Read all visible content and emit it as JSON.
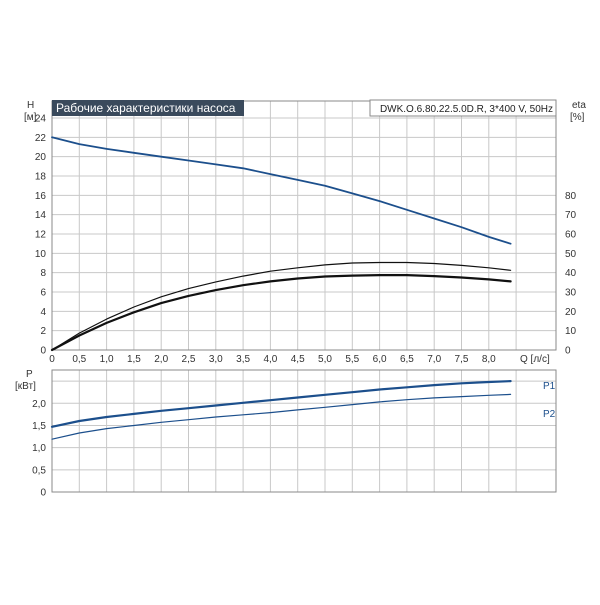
{
  "chart_data": [
    {
      "type": "line",
      "title": "Рабочие характеристики насоса",
      "subtitle": "DWK.O.6.80.22.5.0D.R, 3*400 V, 50Hz",
      "xlabel": "Q [л/с]",
      "ylabel": "H",
      "ylabel_unit": "[м]",
      "y2label": "eta",
      "y2label_unit": "[%]",
      "xlim": [
        0,
        9.1
      ],
      "ylim": [
        0,
        24
      ],
      "y2lim": [
        0,
        120
      ],
      "x_ticks": [
        "0",
        "0,5",
        "1,0",
        "1,5",
        "2,0",
        "2,5",
        "3,0",
        "3,5",
        "4,0",
        "4,5",
        "5,0",
        "5,5",
        "6,0",
        "6,5",
        "7,0",
        "7,5",
        "8,0"
      ],
      "y_ticks": [
        "0",
        "2",
        "4",
        "6",
        "8",
        "10",
        "12",
        "14",
        "16",
        "18",
        "20",
        "22",
        "24"
      ],
      "y2_ticks": [
        "0",
        "10",
        "20",
        "30",
        "40",
        "50",
        "60",
        "70",
        "80"
      ],
      "grid": true,
      "series": [
        {
          "axis": "left",
          "color": "#1c4f8c",
          "x": [
            0,
            0.5,
            1.0,
            1.5,
            2.0,
            2.5,
            3.0,
            3.5,
            4.0,
            4.5,
            5.0,
            5.5,
            6.0,
            6.5,
            7.0,
            7.5,
            8.0,
            8.4
          ],
          "values": [
            22.0,
            21.3,
            20.8,
            20.4,
            20.0,
            19.6,
            19.2,
            18.8,
            18.2,
            17.6,
            17.0,
            16.2,
            15.4,
            14.5,
            13.6,
            12.7,
            11.7,
            11.0
          ]
        },
        {
          "axis": "left",
          "color": "#111111",
          "x": [
            0,
            0.5,
            1.0,
            1.5,
            2.0,
            2.5,
            3.0,
            3.5,
            4.0,
            4.5,
            5.0,
            5.5,
            6.0,
            6.5,
            7.0,
            7.5,
            8.0,
            8.4
          ],
          "values": [
            0,
            1.75,
            3.2,
            4.45,
            5.5,
            6.35,
            7.05,
            7.65,
            8.15,
            8.5,
            8.8,
            9.0,
            9.05,
            9.05,
            8.95,
            8.75,
            8.5,
            8.25
          ]
        },
        {
          "axis": "left",
          "color": "#111111",
          "x": [
            0,
            0.5,
            1.0,
            1.5,
            2.0,
            2.5,
            3.0,
            3.5,
            4.0,
            4.5,
            5.0,
            5.5,
            6.0,
            6.5,
            7.0,
            7.5,
            8.0,
            8.4
          ],
          "values": [
            0,
            1.5,
            2.8,
            3.9,
            4.85,
            5.6,
            6.2,
            6.7,
            7.1,
            7.4,
            7.6,
            7.7,
            7.75,
            7.75,
            7.65,
            7.5,
            7.3,
            7.1
          ]
        }
      ]
    },
    {
      "type": "line",
      "ylabel": "P",
      "ylabel_unit": "[кВт]",
      "xlim": [
        0,
        9.1
      ],
      "ylim": [
        0,
        2.75
      ],
      "y_ticks": [
        "0",
        "0,5",
        "1,0",
        "1,5",
        "2,0"
      ],
      "y_tick_values": [
        0,
        0.5,
        1.0,
        1.5,
        2.0
      ],
      "grid": true,
      "series": [
        {
          "name": "P1",
          "color": "#1c4f8c",
          "x": [
            0,
            0.5,
            1.0,
            1.5,
            2.0,
            2.5,
            3.0,
            3.5,
            4.0,
            4.5,
            5.0,
            5.5,
            6.0,
            6.5,
            7.0,
            7.5,
            8.0,
            8.4
          ],
          "values": [
            1.47,
            1.6,
            1.69,
            1.76,
            1.83,
            1.89,
            1.95,
            2.01,
            2.07,
            2.13,
            2.19,
            2.25,
            2.31,
            2.36,
            2.41,
            2.45,
            2.48,
            2.5
          ]
        },
        {
          "name": "P2",
          "color": "#1c4f8c",
          "x": [
            0,
            0.5,
            1.0,
            1.5,
            2.0,
            2.5,
            3.0,
            3.5,
            4.0,
            4.5,
            5.0,
            5.5,
            6.0,
            6.5,
            7.0,
            7.5,
            8.0,
            8.4
          ],
          "values": [
            1.19,
            1.33,
            1.43,
            1.5,
            1.57,
            1.63,
            1.69,
            1.74,
            1.79,
            1.85,
            1.91,
            1.97,
            2.03,
            2.08,
            2.12,
            2.15,
            2.18,
            2.2
          ]
        }
      ]
    }
  ]
}
